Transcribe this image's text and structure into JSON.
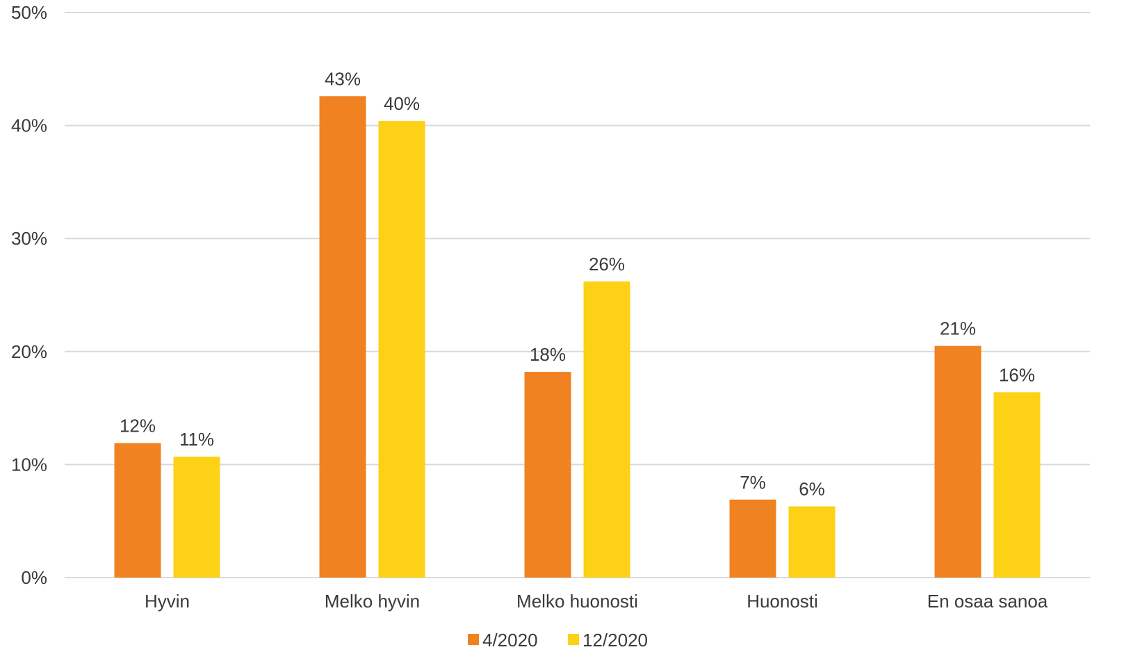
{
  "chart_data": {
    "type": "bar",
    "title": "",
    "xlabel": "",
    "ylabel": "",
    "categories": [
      "Hyvin",
      "Melko hyvin",
      "Melko huonosti",
      "Huonosti",
      "En osaa sanoa"
    ],
    "series": [
      {
        "name": "4/2020",
        "color": "#f08221",
        "values": [
          0.119,
          0.426,
          0.182,
          0.069,
          0.205
        ],
        "labels": [
          "12%",
          "43%",
          "18%",
          "7%",
          "21%"
        ]
      },
      {
        "name": "12/2020",
        "color": "#fcd116",
        "values": [
          0.107,
          0.404,
          0.262,
          0.063,
          0.164
        ],
        "labels": [
          "11%",
          "40%",
          "26%",
          "6%",
          "16%"
        ]
      }
    ],
    "ylim": [
      0,
      0.5
    ],
    "yticks": [
      {
        "value": 0,
        "label": "0%"
      },
      {
        "value": 0.1,
        "label": "10%"
      },
      {
        "value": 0.2,
        "label": "20%"
      },
      {
        "value": 0.3,
        "label": "30%"
      },
      {
        "value": 0.4,
        "label": "40%"
      },
      {
        "value": 0.5,
        "label": "50%"
      }
    ],
    "grid": true,
    "legend": "bottom"
  }
}
